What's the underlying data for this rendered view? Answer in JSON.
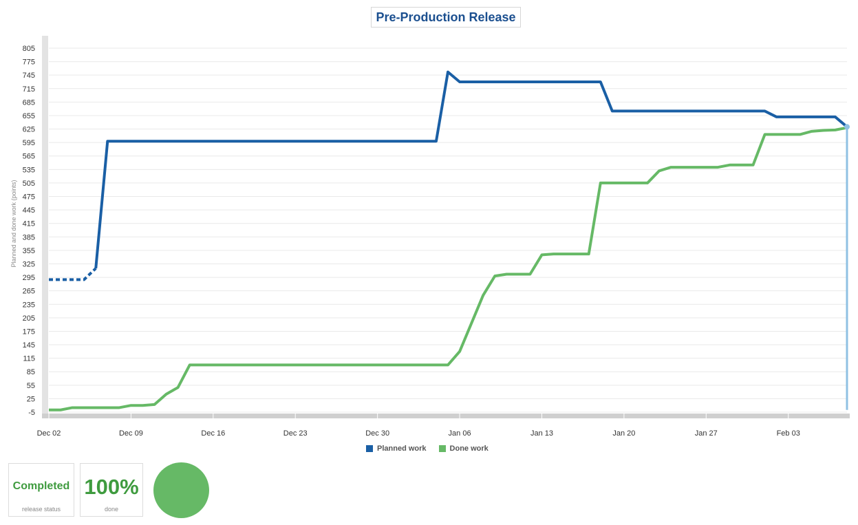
{
  "title": "Pre-Production Release",
  "chart_data": {
    "type": "line",
    "title": "Pre-Production Release",
    "ylabel": "Planned and done work (points)",
    "xlabel": "",
    "x_tick_labels": [
      "Dec 02",
      "Dec 09",
      "Dec 16",
      "Dec 23",
      "Dec 30",
      "Jan 06",
      "Jan 13",
      "Jan 20",
      "Jan 27",
      "Feb 03"
    ],
    "y_ticks": [
      -5,
      25,
      55,
      85,
      115,
      145,
      175,
      205,
      235,
      265,
      295,
      325,
      355,
      385,
      415,
      445,
      475,
      505,
      535,
      565,
      595,
      625,
      655,
      685,
      715,
      745,
      775,
      805
    ],
    "ylim": [
      -5,
      805
    ],
    "x_unit": "days since Dec 02",
    "xlim": [
      0,
      68
    ],
    "grid": true,
    "legend_position": "bottom",
    "series": [
      {
        "name": "Planned work",
        "color": "#1a5fa5",
        "dashed_until_x": 4,
        "points": [
          [
            0,
            290
          ],
          [
            3,
            290
          ],
          [
            4,
            315
          ],
          [
            5,
            598
          ],
          [
            33,
            598
          ],
          [
            34,
            752
          ],
          [
            35,
            730
          ],
          [
            47,
            730
          ],
          [
            48,
            665
          ],
          [
            61,
            665
          ],
          [
            62,
            652
          ],
          [
            67,
            652
          ],
          [
            68,
            630
          ]
        ]
      },
      {
        "name": "Done work",
        "color": "#66b966",
        "points": [
          [
            0,
            0
          ],
          [
            1,
            0
          ],
          [
            2,
            5
          ],
          [
            6,
            5
          ],
          [
            7,
            10
          ],
          [
            8,
            10
          ],
          [
            9,
            12
          ],
          [
            10,
            35
          ],
          [
            11,
            50
          ],
          [
            12,
            100
          ],
          [
            34,
            100
          ],
          [
            35,
            130
          ],
          [
            37,
            255
          ],
          [
            38,
            298
          ],
          [
            39,
            302
          ],
          [
            41,
            302
          ],
          [
            42,
            345
          ],
          [
            43,
            347
          ],
          [
            46,
            347
          ],
          [
            47,
            505
          ],
          [
            51,
            505
          ],
          [
            52,
            532
          ],
          [
            53,
            540
          ],
          [
            57,
            540
          ],
          [
            58,
            545
          ],
          [
            60,
            545
          ],
          [
            61,
            613
          ],
          [
            64,
            613
          ],
          [
            65,
            620
          ],
          [
            66,
            622
          ],
          [
            67,
            623
          ],
          [
            68,
            628
          ]
        ]
      }
    ],
    "current_marker": {
      "x": 68,
      "y": 630,
      "color": "#8fc1e3"
    }
  },
  "legend": {
    "planned_label": "Planned work",
    "done_label": "Done work",
    "planned_color": "#1a5fa5",
    "done_color": "#66b966"
  },
  "status_card": {
    "value": "Completed",
    "label": "release status"
  },
  "done_card": {
    "value": "100%",
    "label": "done",
    "progress_fraction": 1.0,
    "color": "#66b966"
  }
}
